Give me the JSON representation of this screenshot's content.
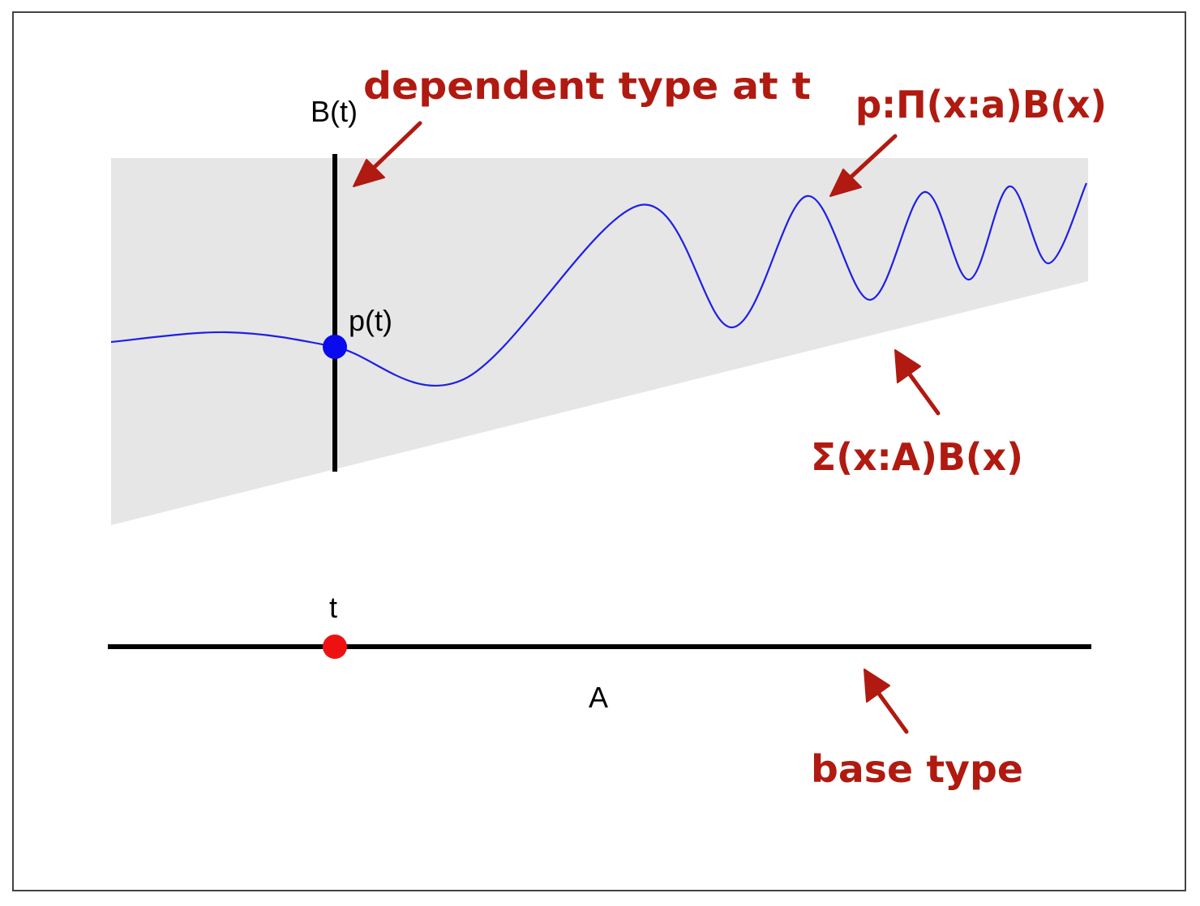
{
  "labels": {
    "fiber": "B(t)",
    "section_point": "p(t)",
    "base_point": "t",
    "base": "A"
  },
  "annotations": {
    "dependent_type": "dependent type at t",
    "pi_type": "p:Π(x:a)B(x)",
    "sigma_type": "Σ(x:A)B(x)",
    "base_type": "base type"
  },
  "colors": {
    "annotation": "#b01a10",
    "region": "#e6e6e6",
    "section_curve": "#1f1fe6",
    "section_point": "#0a0aee",
    "base_point": "#ee1111",
    "axis": "#000000",
    "frame": "#444444"
  }
}
